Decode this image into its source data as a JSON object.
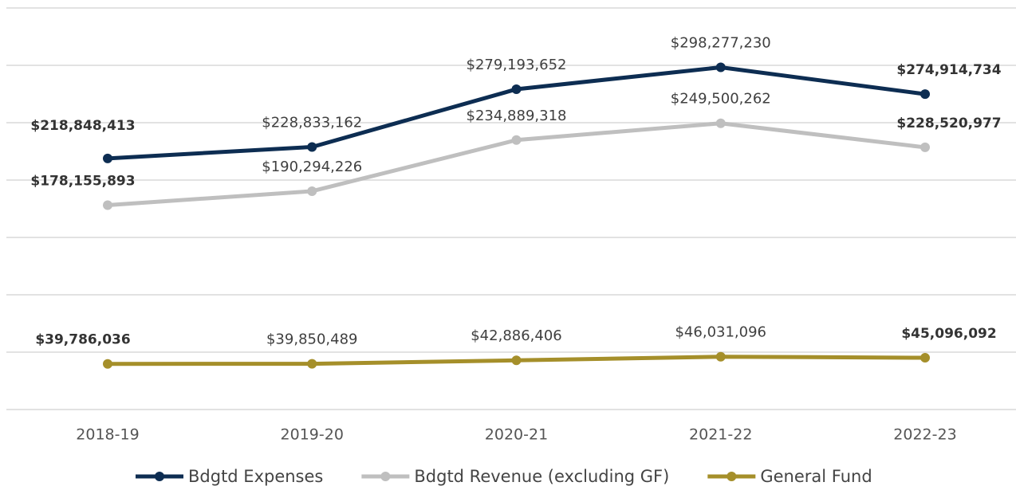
{
  "chart_data": {
    "type": "line",
    "categories": [
      "2018-19",
      "2019-20",
      "2020-21",
      "2021-22",
      "2022-23"
    ],
    "series": [
      {
        "name": "Bdgtd Expenses",
        "color": "#0d2d52",
        "values": [
          218848413,
          228833162,
          279193652,
          298277230,
          274914734
        ],
        "value_labels": [
          "$218,848,413",
          "$228,833,162",
          "$279,193,652",
          "$298,277,230",
          "$274,914,734"
        ]
      },
      {
        "name": "Bdgtd Revenue (excluding GF)",
        "color": "#bfbfbf",
        "values": [
          178155893,
          190294226,
          234889318,
          249500262,
          228520977
        ],
        "value_labels": [
          "$178,155,893",
          "$190,294,226",
          "$234,889,318",
          "$249,500,262",
          "$228,520,977"
        ]
      },
      {
        "name": "General Fund",
        "color": "#a58f2a",
        "values": [
          39786036,
          39850489,
          42886406,
          46031096,
          45096092
        ],
        "value_labels": [
          "$39,786,036",
          "$39,850,489",
          "$42,886,406",
          "$46,031,096",
          "$45,096,092"
        ]
      }
    ],
    "ylim": [
      0,
      350000000
    ],
    "yticks": [
      0,
      50000000,
      100000000,
      150000000,
      200000000,
      250000000,
      300000000,
      350000000
    ],
    "grid": true
  }
}
